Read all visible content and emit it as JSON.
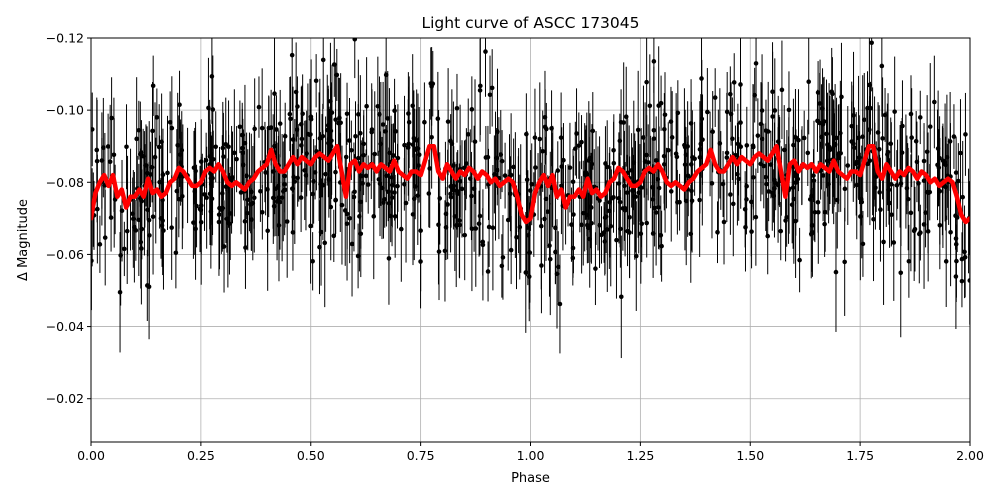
{
  "chart_data": {
    "type": "scatter",
    "title": "Light curve of ASCC 173045",
    "xlabel": "Phase",
    "ylabel": "Δ Magnitude",
    "xlim": [
      0.0,
      2.0
    ],
    "ylim": [
      -0.008,
      -0.12
    ],
    "y_inverted": true,
    "grid": true,
    "x_ticks": [
      {
        "value": 0.0,
        "label": "0.00"
      },
      {
        "value": 0.25,
        "label": "0.25"
      },
      {
        "value": 0.5,
        "label": "0.50"
      },
      {
        "value": 0.75,
        "label": "0.75"
      },
      {
        "value": 1.0,
        "label": "1.00"
      },
      {
        "value": 1.25,
        "label": "1.25"
      },
      {
        "value": 1.5,
        "label": "1.50"
      },
      {
        "value": 1.75,
        "label": "1.75"
      },
      {
        "value": 2.0,
        "label": "2.00"
      }
    ],
    "y_ticks": [
      {
        "value": -0.12,
        "label": "−0.12"
      },
      {
        "value": -0.1,
        "label": "−0.10"
      },
      {
        "value": -0.08,
        "label": "−0.08"
      },
      {
        "value": -0.06,
        "label": "−0.06"
      },
      {
        "value": -0.04,
        "label": "−0.04"
      },
      {
        "value": -0.02,
        "label": "−0.02"
      }
    ],
    "series": [
      {
        "kind": "binned-mean-line",
        "color": "#ff0000",
        "x": [
          0.0,
          0.01,
          0.02,
          0.03,
          0.04,
          0.05,
          0.06,
          0.07,
          0.08,
          0.09,
          0.1,
          0.11,
          0.12,
          0.13,
          0.14,
          0.15,
          0.16,
          0.17,
          0.18,
          0.19,
          0.2,
          0.21,
          0.22,
          0.23,
          0.24,
          0.25,
          0.26,
          0.27,
          0.28,
          0.29,
          0.3,
          0.31,
          0.32,
          0.33,
          0.34,
          0.35,
          0.36,
          0.37,
          0.38,
          0.39,
          0.4,
          0.41,
          0.42,
          0.43,
          0.44,
          0.45,
          0.46,
          0.47,
          0.48,
          0.49,
          0.5,
          0.51,
          0.52,
          0.53,
          0.54,
          0.55,
          0.56,
          0.57,
          0.58,
          0.59,
          0.6,
          0.61,
          0.62,
          0.63,
          0.64,
          0.65,
          0.66,
          0.67,
          0.68,
          0.69,
          0.7,
          0.71,
          0.72,
          0.73,
          0.74,
          0.75,
          0.76,
          0.77,
          0.78,
          0.79,
          0.8,
          0.81,
          0.82,
          0.83,
          0.84,
          0.85,
          0.86,
          0.87,
          0.88,
          0.89,
          0.9,
          0.91,
          0.92,
          0.93,
          0.94,
          0.95,
          0.96,
          0.97,
          0.98,
          0.99,
          1.0
        ],
        "y": [
          -0.07,
          -0.077,
          -0.08,
          -0.082,
          -0.079,
          -0.082,
          -0.076,
          -0.078,
          -0.073,
          -0.076,
          -0.076,
          -0.078,
          -0.076,
          -0.081,
          -0.077,
          -0.078,
          -0.076,
          -0.077,
          -0.08,
          -0.081,
          -0.084,
          -0.083,
          -0.081,
          -0.079,
          -0.079,
          -0.08,
          -0.083,
          -0.084,
          -0.083,
          -0.085,
          -0.083,
          -0.08,
          -0.079,
          -0.08,
          -0.079,
          -0.078,
          -0.08,
          -0.081,
          -0.083,
          -0.084,
          -0.085,
          -0.089,
          -0.085,
          -0.083,
          -0.083,
          -0.085,
          -0.087,
          -0.085,
          -0.087,
          -0.086,
          -0.085,
          -0.087,
          -0.088,
          -0.087,
          -0.086,
          -0.088,
          -0.09,
          -0.083,
          -0.076,
          -0.085,
          -0.086,
          -0.083,
          -0.085,
          -0.084,
          -0.085,
          -0.083,
          -0.085,
          -0.084,
          -0.083,
          -0.086,
          -0.083,
          -0.082,
          -0.081,
          -0.083,
          -0.083,
          -0.082,
          -0.086,
          -0.09,
          -0.09,
          -0.083,
          -0.081,
          -0.085,
          -0.083,
          -0.081,
          -0.083,
          -0.082,
          -0.084,
          -0.083,
          -0.081,
          -0.083,
          -0.082,
          -0.08,
          -0.081,
          -0.079,
          -0.08,
          -0.081,
          -0.08,
          -0.076,
          -0.071,
          -0.069,
          -0.07
        ]
      },
      {
        "kind": "data-points-with-errorbars",
        "color": "#000000",
        "approx_count": 900,
        "x_range": [
          0.0,
          2.0
        ],
        "y_scatter_range": [
          -0.02,
          -0.12
        ],
        "typical_error": 0.012
      }
    ]
  }
}
